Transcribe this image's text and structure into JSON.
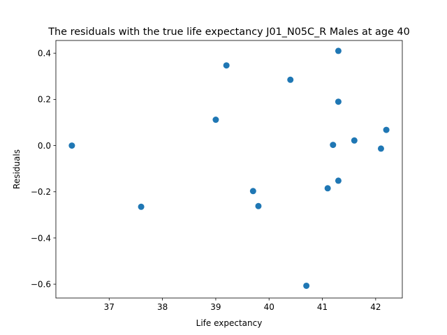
{
  "chart_data": {
    "type": "scatter",
    "title": "The residuals with the true life expectancy J01_N05C_R Males at age 40",
    "xlabel": "Life expectancy",
    "ylabel": "Residuals",
    "xlim": [
      36.0,
      42.5
    ],
    "ylim": [
      -0.66,
      0.455
    ],
    "xticks": [
      37,
      38,
      39,
      40,
      41,
      42
    ],
    "yticks": [
      -0.6,
      -0.4,
      -0.2,
      0.0,
      0.2,
      0.4
    ],
    "xtick_labels": [
      "37",
      "38",
      "39",
      "40",
      "41",
      "42"
    ],
    "ytick_labels": [
      "−0.6",
      "−0.4",
      "−0.2",
      "0.0",
      "0.2",
      "0.4"
    ],
    "grid": false,
    "marker_color": "#1f77b4",
    "points": [
      {
        "x": 36.3,
        "y": 0.0
      },
      {
        "x": 37.6,
        "y": -0.265
      },
      {
        "x": 39.0,
        "y": 0.112
      },
      {
        "x": 39.2,
        "y": 0.347
      },
      {
        "x": 39.7,
        "y": -0.197
      },
      {
        "x": 39.8,
        "y": -0.262
      },
      {
        "x": 40.4,
        "y": 0.285
      },
      {
        "x": 40.7,
        "y": -0.607
      },
      {
        "x": 41.1,
        "y": -0.185
      },
      {
        "x": 41.2,
        "y": 0.003
      },
      {
        "x": 41.3,
        "y": 0.41
      },
      {
        "x": 41.3,
        "y": 0.19
      },
      {
        "x": 41.3,
        "y": -0.152
      },
      {
        "x": 41.6,
        "y": 0.022
      },
      {
        "x": 42.1,
        "y": -0.013
      },
      {
        "x": 42.2,
        "y": 0.068
      }
    ]
  }
}
